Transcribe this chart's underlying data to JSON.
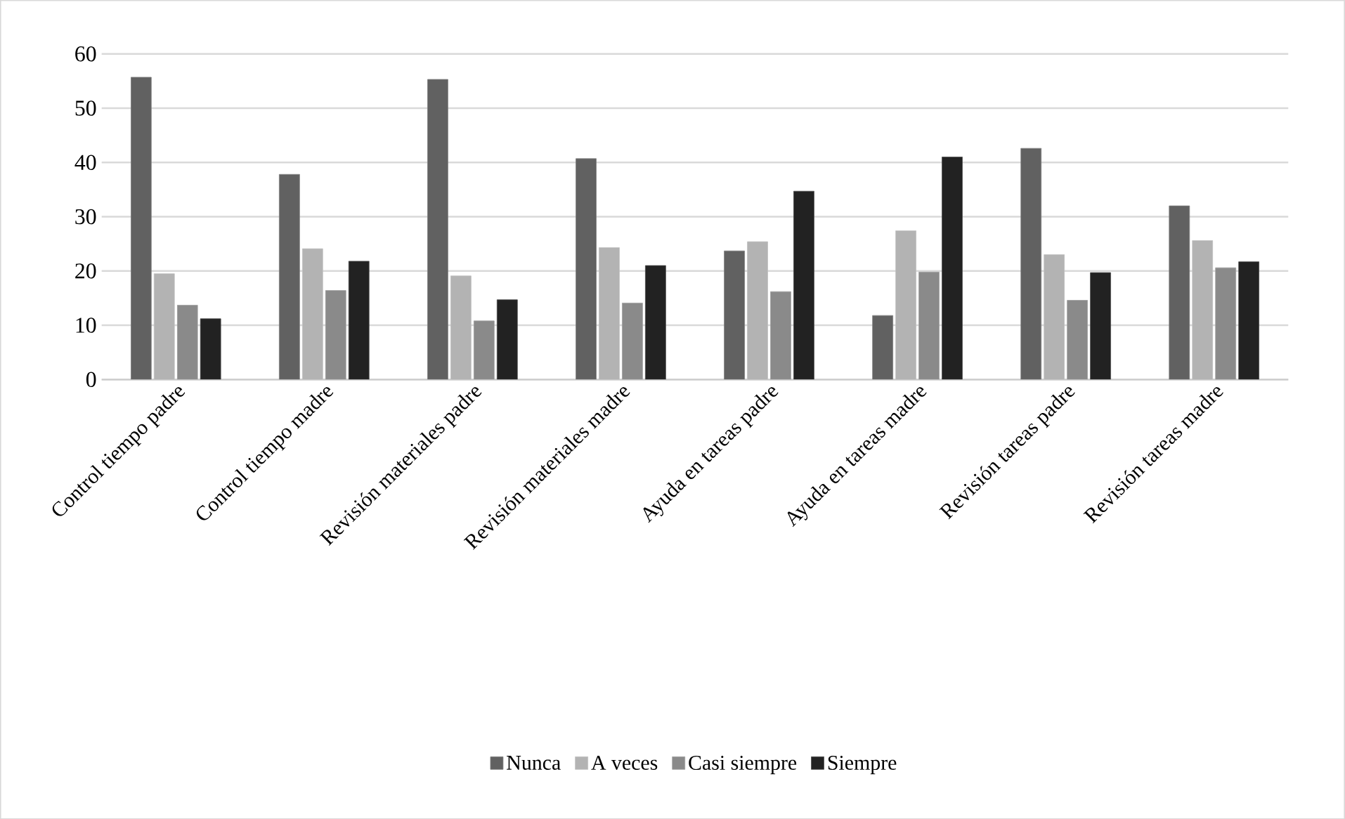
{
  "chart_data": {
    "type": "bar",
    "categories": [
      "Control tiempo padre",
      "Control tiempo madre",
      "Revisión materiales padre",
      "Revisión materiales madre",
      "Ayuda en tareas padre",
      "Ayuda en tareas madre",
      "Revisión tareas padre",
      "Revisión tareas madre"
    ],
    "series": [
      {
        "name": "Nunca",
        "color": "#616161",
        "values": [
          55.7,
          37.8,
          55.3,
          40.7,
          23.7,
          11.8,
          42.6,
          32.0
        ]
      },
      {
        "name": "A veces",
        "color": "#b3b3b3",
        "values": [
          19.5,
          24.1,
          19.1,
          24.3,
          25.4,
          27.4,
          23.0,
          25.6
        ]
      },
      {
        "name": "Casi siempre",
        "color": "#8a8a8a",
        "values": [
          13.7,
          16.4,
          10.8,
          14.1,
          16.2,
          19.8,
          14.6,
          20.6
        ]
      },
      {
        "name": "Siempre",
        "color": "#222222",
        "values": [
          11.2,
          21.8,
          14.7,
          21.0,
          34.7,
          41.0,
          19.7,
          21.7
        ]
      }
    ],
    "ylim": [
      0,
      60
    ],
    "yticks": [
      0,
      10,
      20,
      30,
      40,
      50,
      60
    ],
    "grid": "y",
    "legend": "bottom"
  }
}
